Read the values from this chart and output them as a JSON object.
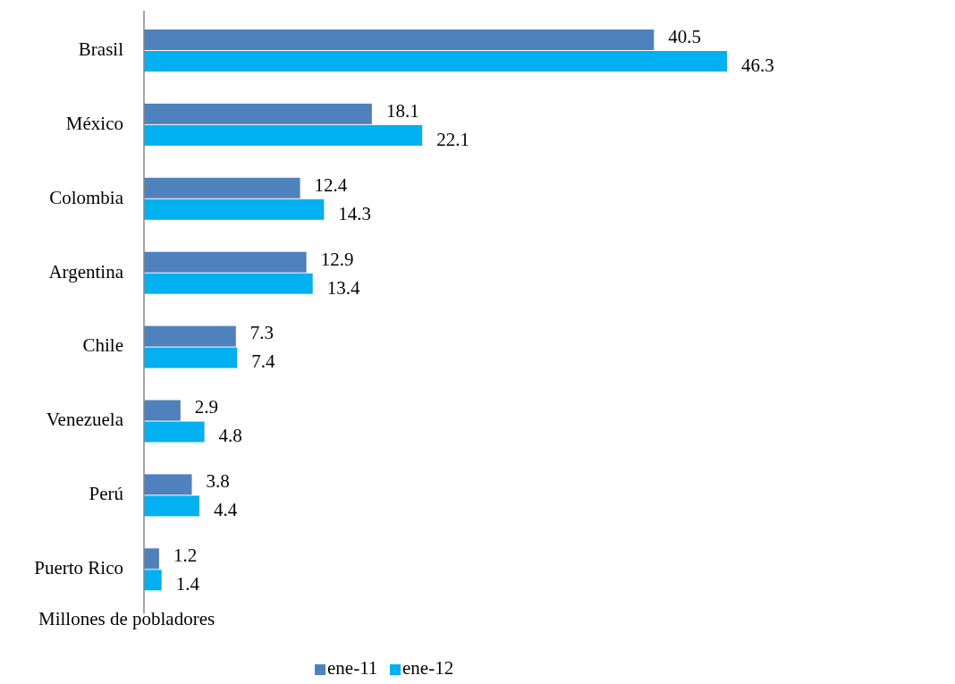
{
  "chart_data": {
    "type": "bar",
    "orientation": "horizontal",
    "xlabel": "Millones de pobladores",
    "categories": [
      "Brasil",
      "México",
      "Colombia",
      "Argentina",
      "Chile",
      "Venezuela",
      "Perú",
      "Puerto Rico"
    ],
    "series": [
      {
        "name": "ene-11",
        "color": "#4f81bd",
        "values": [
          40.5,
          18.1,
          12.4,
          12.9,
          7.3,
          2.9,
          3.8,
          1.2
        ]
      },
      {
        "name": "ene-12",
        "color": "#00b0f0",
        "values": [
          46.3,
          22.1,
          14.3,
          13.4,
          7.4,
          4.8,
          4.4,
          1.4
        ]
      }
    ],
    "data_labels": true,
    "legend": "bottom"
  }
}
